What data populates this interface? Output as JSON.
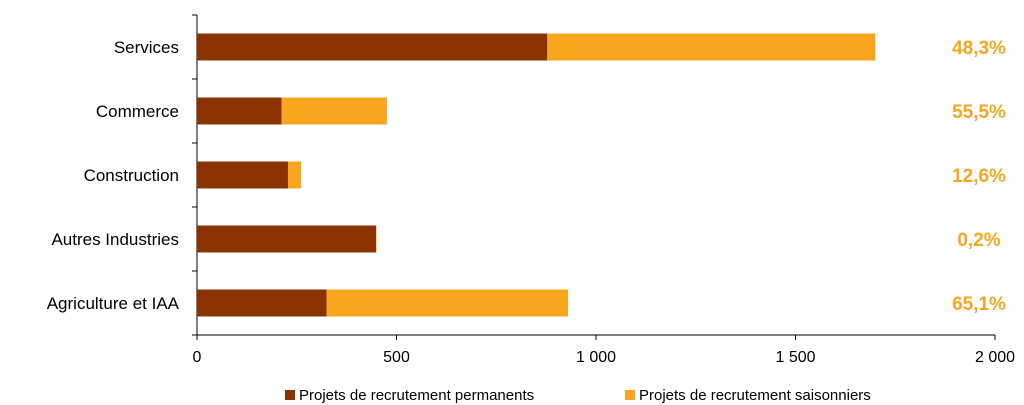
{
  "colors": {
    "permanent": "#8B3300",
    "seasonal": "#F9A61F",
    "percent_text": "#F9A61F",
    "axis": "#000000"
  },
  "chart_data": {
    "type": "bar",
    "orientation": "horizontal",
    "stacked": true,
    "title": "",
    "xlabel": "",
    "ylabel": "",
    "xlim": [
      0,
      2000
    ],
    "x_ticks": [
      0,
      500,
      1000,
      1500,
      2000
    ],
    "x_tick_labels": [
      "0",
      "500",
      "1 000",
      "1 500",
      "2 000"
    ],
    "grid": false,
    "legend_position": "bottom",
    "categories": [
      "Services",
      "Commerce",
      "Construction",
      "Autres Industries",
      "Agriculture et IAA"
    ],
    "series": [
      {
        "name": "Projets de recrutement permanents",
        "values": [
          878,
          212,
          228,
          449,
          325
        ]
      },
      {
        "name": "Projets de recrutement saisonniers",
        "values": [
          822,
          264,
          33,
          1,
          605
        ]
      }
    ],
    "annotations": [
      "48,3%",
      "55,5%",
      "12,6%",
      "0,2%",
      "65,1%"
    ]
  }
}
